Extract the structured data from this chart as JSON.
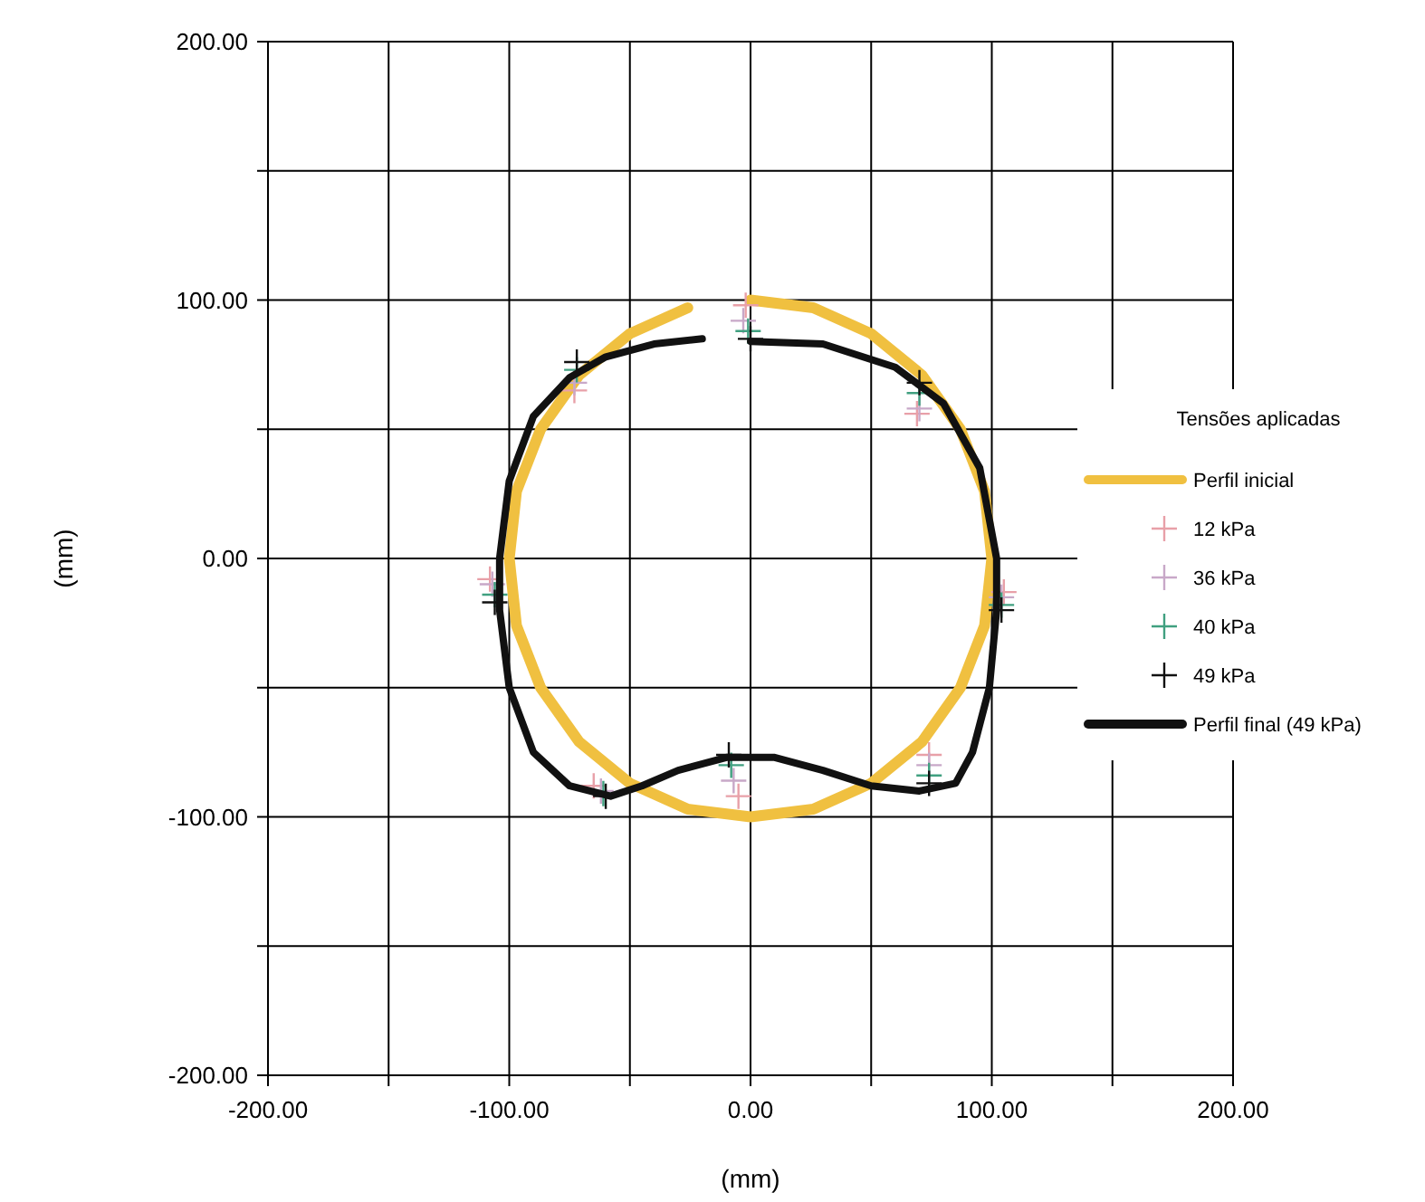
{
  "chart_data": {
    "type": "line",
    "xlabel": "(mm)",
    "ylabel": "(mm)",
    "legend_title": "Tensões aplicadas",
    "legend": "right",
    "grid": true,
    "xlim": [
      -200,
      200
    ],
    "ylim": [
      -200,
      200
    ],
    "xticks": [
      {
        "value": -200,
        "label": "-200.00"
      },
      {
        "value": -150,
        "label": null
      },
      {
        "value": -100,
        "label": "-100.00"
      },
      {
        "value": -50,
        "label": null
      },
      {
        "value": 0,
        "label": "0.00"
      },
      {
        "value": 50,
        "label": null
      },
      {
        "value": 100,
        "label": "100.00"
      },
      {
        "value": 150,
        "label": null
      },
      {
        "value": 200,
        "label": "200.00"
      }
    ],
    "yticks": [
      {
        "value": -200,
        "label": "-200.00"
      },
      {
        "value": -150,
        "label": null
      },
      {
        "value": -100,
        "label": "-100.00"
      },
      {
        "value": -50,
        "label": null
      },
      {
        "value": 0,
        "label": "0.00"
      },
      {
        "value": 50,
        "label": null
      },
      {
        "value": 100,
        "label": "100.00"
      },
      {
        "value": 150,
        "label": null
      },
      {
        "value": 200,
        "label": "200.00"
      }
    ],
    "series": [
      {
        "name": "Perfil inicial",
        "marker": "none",
        "color": "#f0c040",
        "x": [
          0,
          26,
          50,
          71,
          87,
          97,
          100,
          97,
          87,
          71,
          50,
          26,
          0,
          -26,
          -50,
          -71,
          -87,
          -97,
          -100,
          -97,
          -87,
          -71,
          -50,
          -26
        ],
        "values": [
          100,
          97,
          87,
          71,
          50,
          26,
          0,
          -26,
          -50,
          -71,
          -87,
          -97,
          -100,
          -97,
          -87,
          -71,
          -50,
          -26,
          0,
          26,
          50,
          71,
          87,
          97
        ]
      },
      {
        "name": "12 kPa",
        "type": "scatter",
        "marker": "cross",
        "color": "#e8a0a8",
        "x": [
          -2,
          69,
          105,
          74,
          -5,
          -65,
          -108,
          -73
        ],
        "values": [
          98,
          56,
          -13,
          -76,
          -92,
          -88,
          -8,
          65
        ]
      },
      {
        "name": "36 kPa",
        "type": "scatter",
        "marker": "cross",
        "color": "#c8a8c8",
        "x": [
          -3,
          70,
          104,
          74,
          -7,
          -62,
          -107,
          -73
        ],
        "values": [
          92,
          58,
          -15,
          -80,
          -86,
          -90,
          -10,
          68
        ]
      },
      {
        "name": "40 kPa",
        "type": "scatter",
        "marker": "cross",
        "color": "#40a080",
        "x": [
          -1,
          70,
          104,
          74,
          -8,
          -61,
          -106,
          -72
        ],
        "values": [
          88,
          64,
          -18,
          -84,
          -80,
          -91,
          -14,
          73
        ]
      },
      {
        "name": "49 kPa",
        "type": "scatter",
        "marker": "cross",
        "color": "#111111",
        "x": [
          0,
          70,
          104,
          74,
          -9,
          -60,
          -106,
          -72
        ],
        "values": [
          85,
          68,
          -20,
          -87,
          -76,
          -92,
          -17,
          76
        ]
      },
      {
        "name": "Perfil final (49 kPa)",
        "marker": "none",
        "color": "#111111",
        "x": [
          0,
          30,
          60,
          80,
          95,
          102,
          102,
          99,
          92,
          85,
          70,
          50,
          30,
          10,
          -10,
          -30,
          -45,
          -58,
          -75,
          -90,
          -100,
          -104,
          -104,
          -100,
          -90,
          -75,
          -60,
          -40,
          -20
        ],
        "values": [
          84,
          83,
          74,
          60,
          35,
          0,
          -20,
          -50,
          -75,
          -87,
          -90,
          -88,
          -82,
          -77,
          -77,
          -82,
          -88,
          -92,
          -88,
          -75,
          -50,
          -20,
          0,
          30,
          55,
          70,
          78,
          83,
          85
        ]
      }
    ]
  }
}
